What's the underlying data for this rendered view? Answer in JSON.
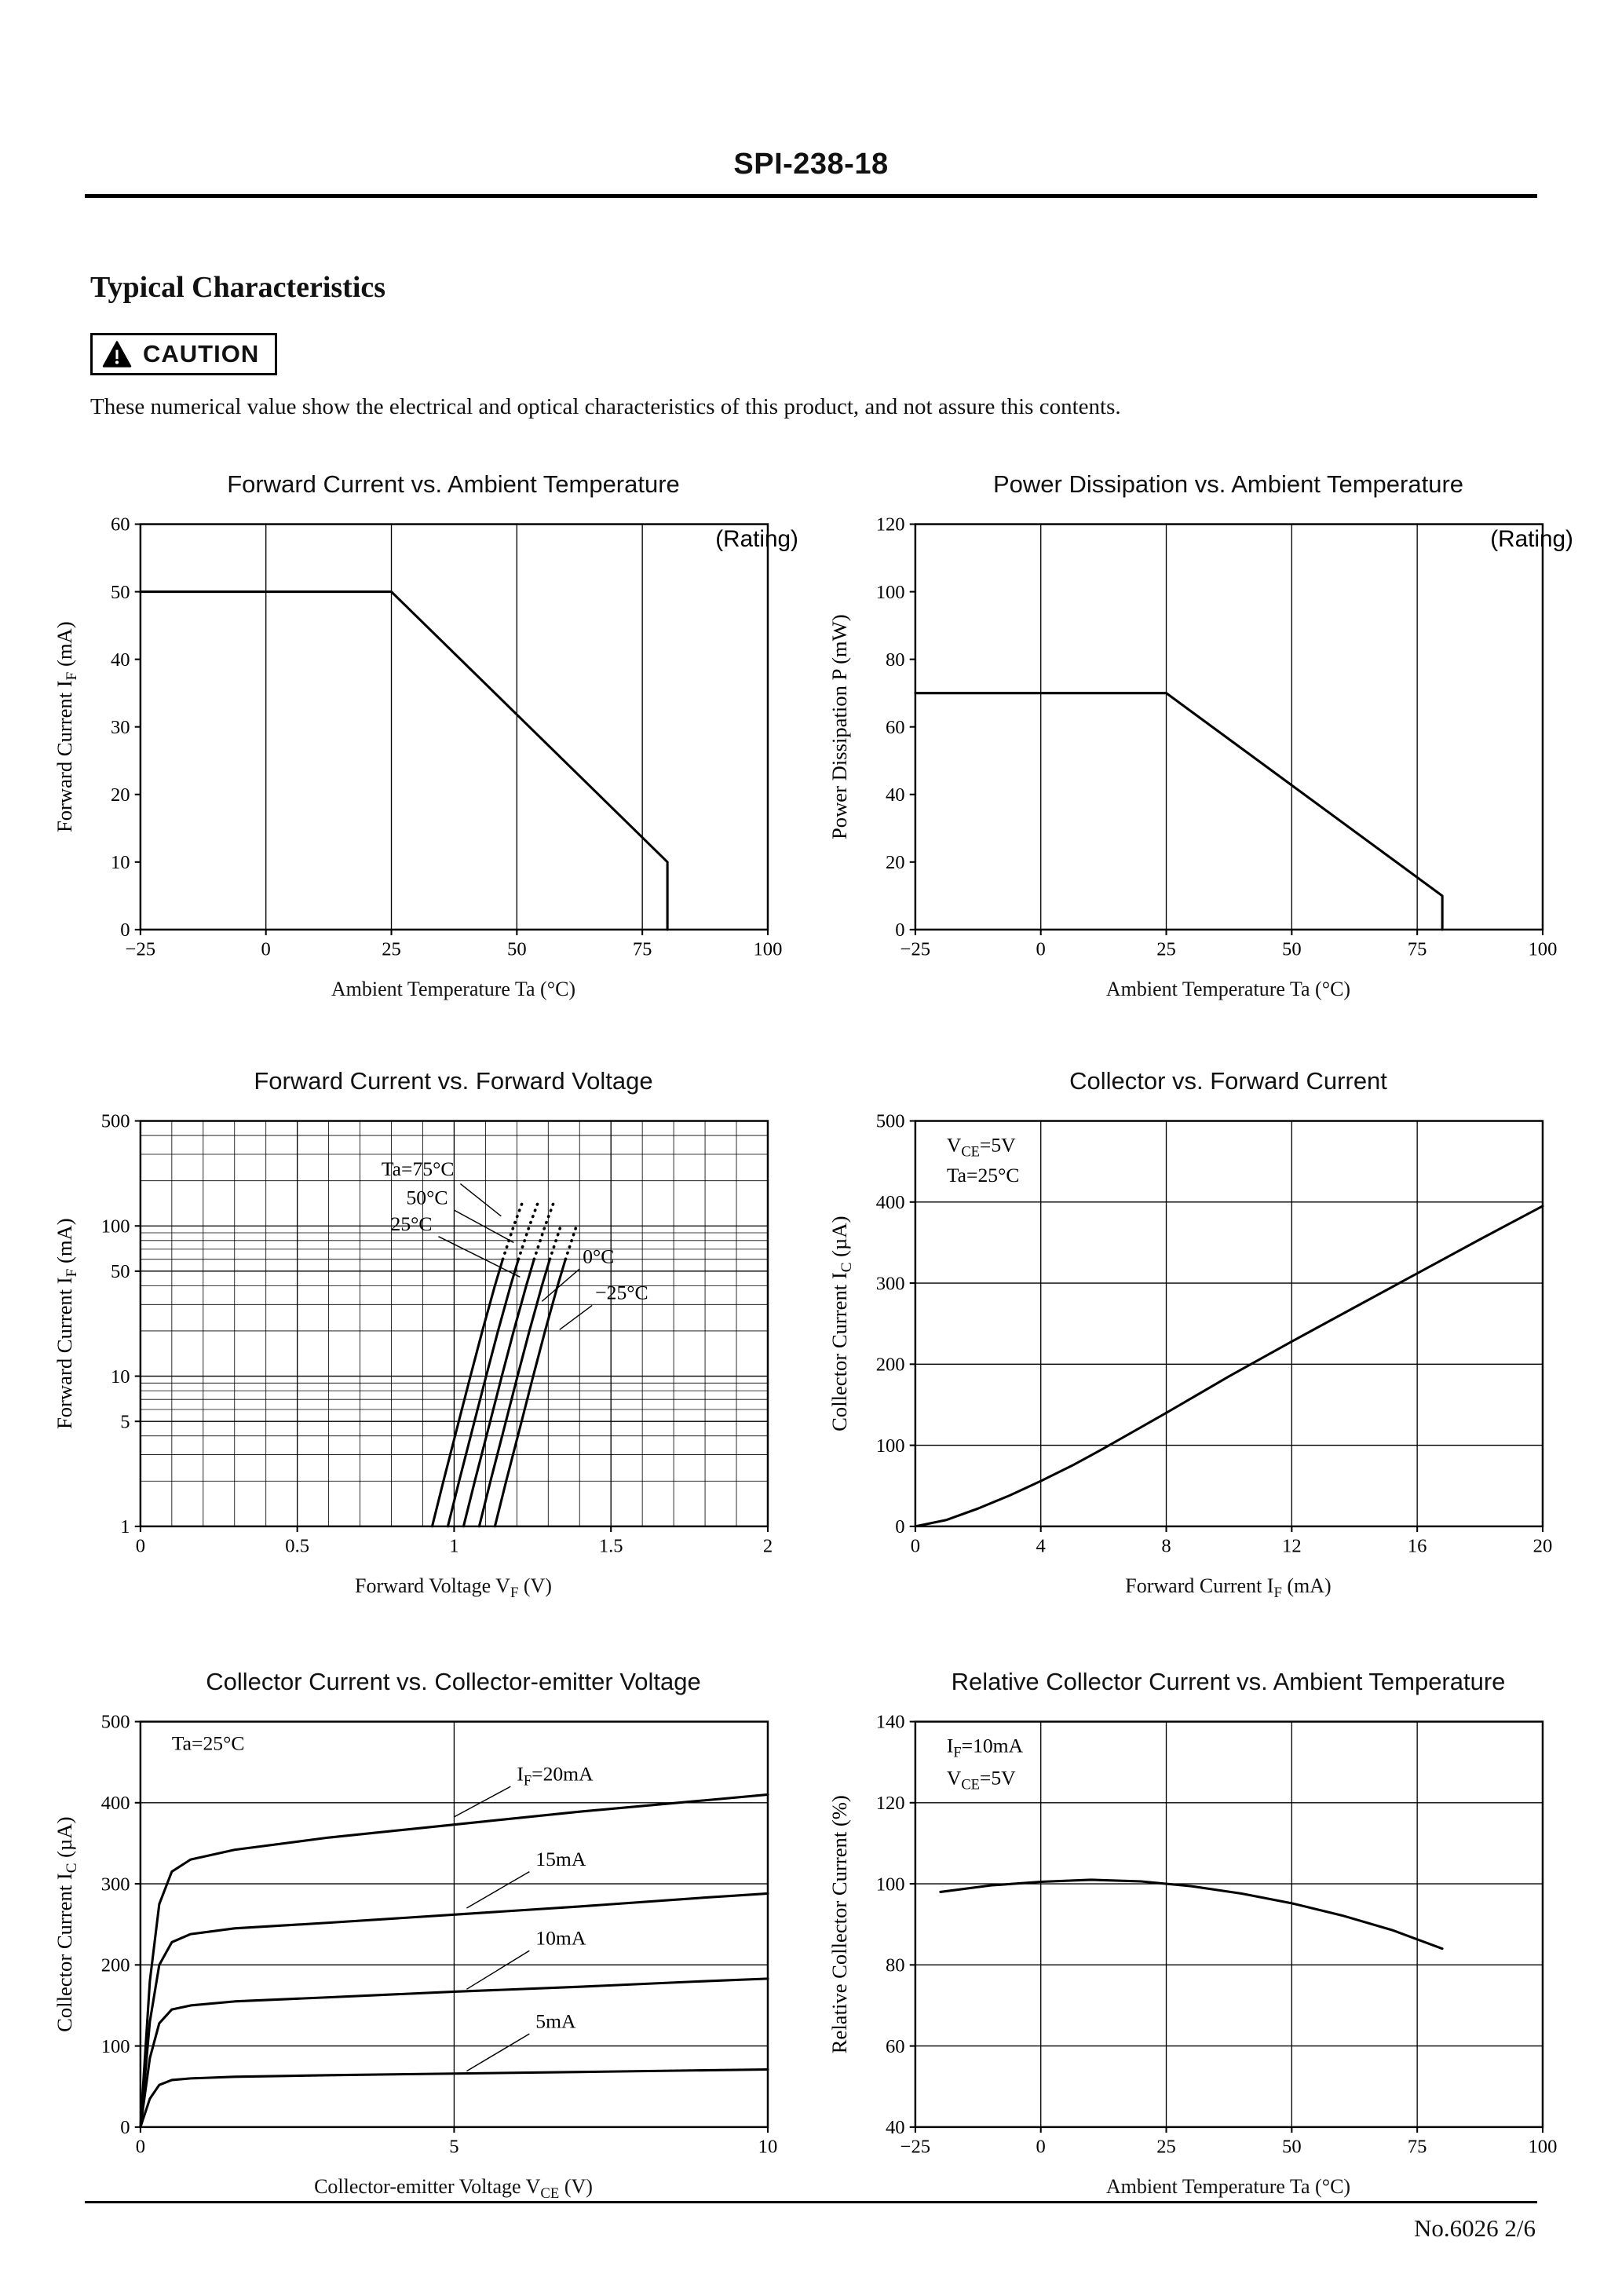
{
  "page": {
    "doc_number": "SPI-238-18",
    "section_title": "Typical Characteristics",
    "caution_label": "CAUTION",
    "caution_text": "These numerical value show the electrical and optical characteristics of this product, and not assure this contents.",
    "footer_ref": "No.6026 2/6"
  },
  "colors": {
    "ink": "#000000",
    "paper": "#ffffff"
  },
  "chart_data": [
    {
      "type": "line",
      "title": "Forward Current vs. Ambient Temperature",
      "corner_note": "(Rating)",
      "xlabel": "Ambient Temperature Ta (°C)",
      "ylabel": "Forward Current I_{F} (mA)",
      "xlim": [
        -25,
        100
      ],
      "ylim": [
        0,
        60
      ],
      "yscale": "linear",
      "xticks": [
        -25,
        0,
        25,
        50,
        75,
        100
      ],
      "xtick_labels": [
        "−25",
        "0",
        "25",
        "50",
        "75",
        "100"
      ],
      "yticks": [
        0,
        10,
        20,
        30,
        40,
        50,
        60
      ],
      "ytick_labels": [
        "0",
        "10",
        "20",
        "30",
        "40",
        "50",
        "60"
      ],
      "xgrid": [
        0,
        25,
        50,
        75
      ],
      "ygrid": [],
      "series": [
        {
          "name": "derating-line",
          "style": "solid",
          "points": [
            [
              -25,
              50
            ],
            [
              25,
              50
            ],
            [
              80,
              10
            ],
            [
              80,
              0
            ]
          ]
        }
      ],
      "annotations": []
    },
    {
      "type": "line",
      "title": "Power Dissipation vs. Ambient Temperature",
      "corner_note": "(Rating)",
      "xlabel": "Ambient Temperature Ta (°C)",
      "ylabel": "Power Dissipation P (mW)",
      "xlim": [
        -25,
        100
      ],
      "ylim": [
        0,
        120
      ],
      "yscale": "linear",
      "xticks": [
        -25,
        0,
        25,
        50,
        75,
        100
      ],
      "xtick_labels": [
        "−25",
        "0",
        "25",
        "50",
        "75",
        "100"
      ],
      "yticks": [
        0,
        20,
        40,
        60,
        80,
        100,
        120
      ],
      "ytick_labels": [
        "0",
        "20",
        "40",
        "60",
        "80",
        "100",
        "120"
      ],
      "xgrid": [
        0,
        25,
        50,
        75
      ],
      "ygrid": [],
      "series": [
        {
          "name": "derating-line",
          "style": "solid",
          "points": [
            [
              -25,
              70
            ],
            [
              25,
              70
            ],
            [
              80,
              10
            ],
            [
              80,
              0
            ]
          ]
        }
      ],
      "annotations": []
    },
    {
      "type": "line",
      "title": "Forward Current vs. Forward Voltage",
      "xlabel": "Forward Voltage V_{F} (V)",
      "ylabel": "Forward Current I_{F} (mA)",
      "xlim": [
        0,
        2
      ],
      "ylim": [
        1,
        500
      ],
      "yscale": "log",
      "xticks": [
        0,
        0.5,
        1,
        1.5,
        2
      ],
      "xtick_labels": [
        "0",
        "0.5",
        "1",
        "1.5",
        "2"
      ],
      "yticks": [
        1,
        5,
        10,
        50,
        100,
        500
      ],
      "ytick_labels": [
        "1",
        "5",
        "10",
        "50",
        "100",
        "500"
      ],
      "xgrid": [
        0.5,
        1,
        1.5
      ],
      "xgrid_minor": [
        0.1,
        0.2,
        0.3,
        0.4,
        0.6,
        0.7,
        0.8,
        0.9,
        1.1,
        1.2,
        1.3,
        1.4,
        1.6,
        1.7,
        1.8,
        1.9
      ],
      "ygrid": [
        5,
        10,
        50,
        100
      ],
      "ygrid_minor": [
        2,
        3,
        4,
        6,
        7,
        8,
        9,
        20,
        30,
        40,
        60,
        70,
        80,
        90,
        200,
        300,
        400
      ],
      "series": [
        {
          "name": "Ta-75C",
          "style": "solid",
          "points": [
            [
              0.93,
              1
            ],
            [
              0.966,
              2
            ],
            [
              1.015,
              5
            ],
            [
              1.052,
              10
            ],
            [
              1.09,
              20
            ],
            [
              1.13,
              40
            ],
            [
              1.155,
              60
            ]
          ]
        },
        {
          "name": "Ta-75C-ext",
          "style": "dotted",
          "points": [
            [
              1.155,
              60
            ],
            [
              1.19,
              100
            ],
            [
              1.221,
              150
            ]
          ]
        },
        {
          "name": "Ta-50C",
          "style": "solid",
          "points": [
            [
              0.98,
              1
            ],
            [
              1.016,
              2
            ],
            [
              1.065,
              5
            ],
            [
              1.102,
              10
            ],
            [
              1.14,
              20
            ],
            [
              1.18,
              40
            ],
            [
              1.205,
              60
            ]
          ]
        },
        {
          "name": "Ta-50C-ext",
          "style": "dotted",
          "points": [
            [
              1.205,
              60
            ],
            [
              1.24,
              100
            ],
            [
              1.271,
              150
            ]
          ]
        },
        {
          "name": "Ta-25C",
          "style": "solid",
          "points": [
            [
              1.03,
              1
            ],
            [
              1.066,
              2
            ],
            [
              1.115,
              5
            ],
            [
              1.152,
              10
            ],
            [
              1.19,
              20
            ],
            [
              1.23,
              40
            ],
            [
              1.255,
              60
            ]
          ]
        },
        {
          "name": "Ta-25C-ext",
          "style": "dotted",
          "points": [
            [
              1.255,
              60
            ],
            [
              1.29,
              100
            ],
            [
              1.321,
              150
            ]
          ]
        },
        {
          "name": "Ta-0C",
          "style": "solid",
          "points": [
            [
              1.08,
              1
            ],
            [
              1.116,
              2
            ],
            [
              1.165,
              5
            ],
            [
              1.202,
              10
            ],
            [
              1.24,
              20
            ],
            [
              1.28,
              40
            ],
            [
              1.305,
              60
            ]
          ]
        },
        {
          "name": "Ta-0C-ext",
          "style": "dotted",
          "points": [
            [
              1.305,
              60
            ],
            [
              1.34,
              100
            ]
          ]
        },
        {
          "name": "Ta-m25C",
          "style": "solid",
          "points": [
            [
              1.13,
              1
            ],
            [
              1.166,
              2
            ],
            [
              1.215,
              5
            ],
            [
              1.252,
              10
            ],
            [
              1.29,
              20
            ],
            [
              1.33,
              40
            ],
            [
              1.355,
              60
            ]
          ]
        },
        {
          "name": "Ta-m25C-ext",
          "style": "dotted",
          "points": [
            [
              1.355,
              60
            ],
            [
              1.39,
              100
            ]
          ]
        }
      ],
      "annotations": [
        {
          "text": "Ta=75°C",
          "fx": 0.5,
          "fy": 0.135,
          "anchor": "end",
          "leader": [
            0.51,
            0.155,
            0.575,
            0.235
          ]
        },
        {
          "text": "50°C",
          "fx": 0.49,
          "fy": 0.205,
          "anchor": "end",
          "leader": [
            0.5,
            0.22,
            0.595,
            0.3
          ]
        },
        {
          "text": "25°C",
          "fx": 0.465,
          "fy": 0.27,
          "anchor": "end",
          "leader": [
            0.475,
            0.285,
            0.605,
            0.385
          ]
        },
        {
          "text": "0°C",
          "fx": 0.705,
          "fy": 0.35,
          "anchor": "start",
          "leader": [
            0.7,
            0.365,
            0.64,
            0.445
          ]
        },
        {
          "text": "−25°C",
          "fx": 0.725,
          "fy": 0.44,
          "anchor": "start",
          "leader": [
            0.72,
            0.455,
            0.668,
            0.515
          ]
        }
      ]
    },
    {
      "type": "line",
      "title": "Collector vs. Forward Current",
      "xlabel": "Forward Current I_{F} (mA)",
      "ylabel": "Collector Current I_{C} (µA)",
      "xlim": [
        0,
        20
      ],
      "ylim": [
        0,
        500
      ],
      "yscale": "linear",
      "xticks": [
        0,
        4,
        8,
        12,
        16,
        20
      ],
      "xtick_labels": [
        "0",
        "4",
        "8",
        "12",
        "16",
        "20"
      ],
      "yticks": [
        0,
        100,
        200,
        300,
        400,
        500
      ],
      "ytick_labels": [
        "0",
        "100",
        "200",
        "300",
        "400",
        "500"
      ],
      "xgrid": [
        4,
        8,
        12,
        16
      ],
      "ygrid": [
        100,
        200,
        300,
        400
      ],
      "series": [
        {
          "name": "ic-vs-if",
          "style": "solid",
          "points": [
            [
              0,
              0
            ],
            [
              1,
              8
            ],
            [
              2,
              22
            ],
            [
              3,
              38
            ],
            [
              4,
              56
            ],
            [
              5,
              75
            ],
            [
              6,
              96
            ],
            [
              8,
              140
            ],
            [
              10,
              185
            ],
            [
              12,
              228
            ],
            [
              14,
              270
            ],
            [
              16,
              312
            ],
            [
              18,
              354
            ],
            [
              20,
              395
            ]
          ]
        }
      ],
      "annotations": [
        {
          "text": "V_{CE}=5V",
          "fx": 0.05,
          "fy": 0.075,
          "anchor": "start"
        },
        {
          "text": "Ta=25°C",
          "fx": 0.05,
          "fy": 0.15,
          "anchor": "start"
        }
      ]
    },
    {
      "type": "line",
      "title": "Collector Current vs. Collector-emitter Voltage",
      "xlabel": "Collector-emitter Voltage V_{CE} (V)",
      "ylabel": "Collector Current I_{C} (µA)",
      "xlim": [
        0,
        10
      ],
      "ylim": [
        0,
        500
      ],
      "yscale": "linear",
      "xticks": [
        0,
        5,
        10
      ],
      "xtick_labels": [
        "0",
        "5",
        "10"
      ],
      "yticks": [
        0,
        100,
        200,
        300,
        400,
        500
      ],
      "ytick_labels": [
        "0",
        "100",
        "200",
        "300",
        "400",
        "500"
      ],
      "xgrid": [
        5
      ],
      "ygrid": [
        100,
        200,
        300,
        400
      ],
      "series": [
        {
          "name": "IF-20mA",
          "style": "solid",
          "points": [
            [
              0,
              0
            ],
            [
              0.15,
              180
            ],
            [
              0.3,
              275
            ],
            [
              0.5,
              315
            ],
            [
              0.8,
              330
            ],
            [
              1.5,
              342
            ],
            [
              3,
              357
            ],
            [
              5,
              373
            ],
            [
              7,
              389
            ],
            [
              9,
              403
            ],
            [
              10,
              410
            ]
          ]
        },
        {
          "name": "IF-15mA",
          "style": "solid",
          "points": [
            [
              0,
              0
            ],
            [
              0.15,
              130
            ],
            [
              0.3,
              200
            ],
            [
              0.5,
              228
            ],
            [
              0.8,
              238
            ],
            [
              1.5,
              245
            ],
            [
              3,
              252
            ],
            [
              5,
              262
            ],
            [
              7,
              272
            ],
            [
              9,
              283
            ],
            [
              10,
              288
            ]
          ]
        },
        {
          "name": "IF-10mA",
          "style": "solid",
          "points": [
            [
              0,
              0
            ],
            [
              0.15,
              85
            ],
            [
              0.3,
              128
            ],
            [
              0.5,
              145
            ],
            [
              0.8,
              150
            ],
            [
              1.5,
              155
            ],
            [
              3,
              160
            ],
            [
              5,
              167
            ],
            [
              7,
              173
            ],
            [
              9,
              180
            ],
            [
              10,
              183
            ]
          ]
        },
        {
          "name": "IF-5mA",
          "style": "solid",
          "points": [
            [
              0,
              0
            ],
            [
              0.15,
              35
            ],
            [
              0.3,
              52
            ],
            [
              0.5,
              58
            ],
            [
              0.8,
              60
            ],
            [
              1.5,
              62
            ],
            [
              3,
              64
            ],
            [
              5,
              66
            ],
            [
              7,
              68
            ],
            [
              9,
              70
            ],
            [
              10,
              71
            ]
          ]
        }
      ],
      "annotations": [
        {
          "text": "Ta=25°C",
          "fx": 0.05,
          "fy": 0.07,
          "anchor": "start"
        },
        {
          "text": "I_{F}=20mA",
          "fx": 0.6,
          "fy": 0.145,
          "anchor": "start",
          "leader": [
            0.59,
            0.16,
            0.5,
            0.235
          ]
        },
        {
          "text": "15mA",
          "fx": 0.63,
          "fy": 0.355,
          "anchor": "start",
          "leader": [
            0.62,
            0.37,
            0.52,
            0.46
          ]
        },
        {
          "text": "10mA",
          "fx": 0.63,
          "fy": 0.55,
          "anchor": "start",
          "leader": [
            0.62,
            0.565,
            0.52,
            0.66
          ]
        },
        {
          "text": "5mA",
          "fx": 0.63,
          "fy": 0.755,
          "anchor": "start",
          "leader": [
            0.62,
            0.77,
            0.52,
            0.862
          ]
        }
      ]
    },
    {
      "type": "line",
      "title": "Relative Collector Current vs. Ambient Temperature",
      "xlabel": "Ambient Temperature Ta (°C)",
      "ylabel": "Relative Collector Current (%)",
      "xlim": [
        -25,
        100
      ],
      "ylim": [
        40,
        140
      ],
      "yscale": "linear",
      "xticks": [
        -25,
        0,
        25,
        50,
        75,
        100
      ],
      "xtick_labels": [
        "−25",
        "0",
        "25",
        "50",
        "75",
        "100"
      ],
      "yticks": [
        40,
        60,
        80,
        100,
        120,
        140
      ],
      "ytick_labels": [
        "40",
        "60",
        "80",
        "100",
        "120",
        "140"
      ],
      "xgrid": [
        0,
        25,
        50,
        75
      ],
      "ygrid": [
        60,
        80,
        100,
        120
      ],
      "series": [
        {
          "name": "relative-ic",
          "style": "solid",
          "points": [
            [
              -20,
              98
            ],
            [
              -10,
              99.6
            ],
            [
              0,
              100.5
            ],
            [
              10,
              101
            ],
            [
              20,
              100.6
            ],
            [
              30,
              99.4
            ],
            [
              40,
              97.6
            ],
            [
              50,
              95.2
            ],
            [
              60,
              92.2
            ],
            [
              70,
              88.6
            ],
            [
              80,
              84
            ]
          ]
        }
      ],
      "annotations": [
        {
          "text": "I_{F}=10mA",
          "fx": 0.05,
          "fy": 0.075,
          "anchor": "start"
        },
        {
          "text": "V_{CE}=5V",
          "fx": 0.05,
          "fy": 0.155,
          "anchor": "start"
        }
      ]
    }
  ]
}
